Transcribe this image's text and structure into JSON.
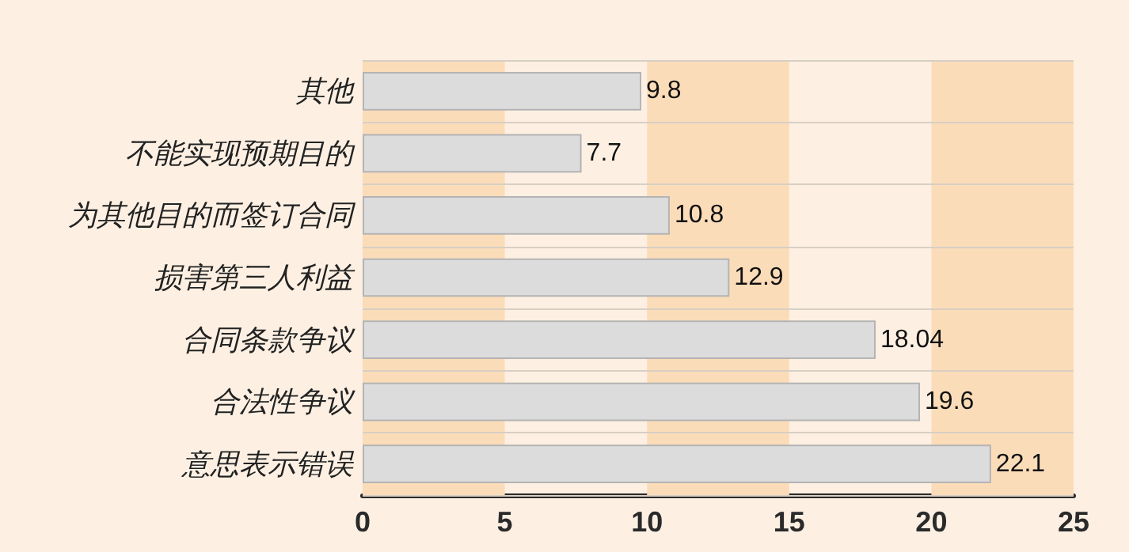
{
  "chart_data": {
    "type": "bar",
    "orientation": "horizontal",
    "categories": [
      "其他",
      "不能实现预期目的",
      "为其他目的而签订合同",
      "损害第三人利益",
      "合同条款争议",
      "合法性争议",
      "意思表示错误"
    ],
    "values": [
      9.8,
      7.7,
      10.8,
      12.9,
      18.04,
      19.6,
      22.1
    ],
    "color": "#dcdcdc",
    "xlim": [
      0,
      25
    ],
    "xticks": [
      0,
      5,
      10,
      15,
      20,
      25
    ],
    "grid": "y",
    "data_labels": true,
    "bands": [
      {
        "axis": "x",
        "from": 0,
        "to": 5,
        "color": "#fbdcb9"
      },
      {
        "axis": "x",
        "from": 10,
        "to": 15,
        "color": "#fbdcb9"
      },
      {
        "axis": "x",
        "from": 20,
        "to": 25,
        "color": "#fbdcb9"
      }
    ]
  }
}
